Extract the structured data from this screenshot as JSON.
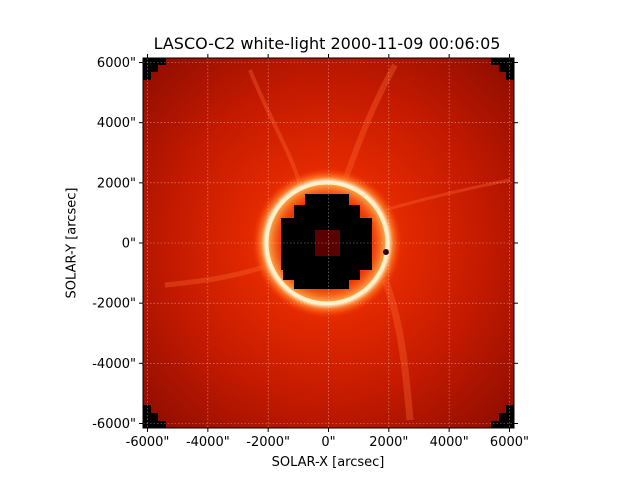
{
  "figure": {
    "title": "LASCO-C2 white-light 2000-11-09 00:06:05",
    "xlabel": "SOLAR-X [arcsec]",
    "ylabel": "SOLAR-Y [arcsec]"
  },
  "axes": {
    "xlim": [
      -6150,
      6150
    ],
    "ylim": [
      -6150,
      6150
    ],
    "ticks": [
      -6000,
      -4000,
      -2000,
      0,
      2000,
      4000,
      6000
    ],
    "tick_labels": [
      "-6000\"",
      "-4000\"",
      "-2000\"",
      "0\"",
      "2000\"",
      "4000\"",
      "6000\""
    ],
    "grid": true
  },
  "image": {
    "description_colormap": "sohol-lasco-c2",
    "occulter_ring_radius_arcsec": 1950,
    "background_color": "#b31200",
    "ring_color": "#fff2c8"
  }
}
